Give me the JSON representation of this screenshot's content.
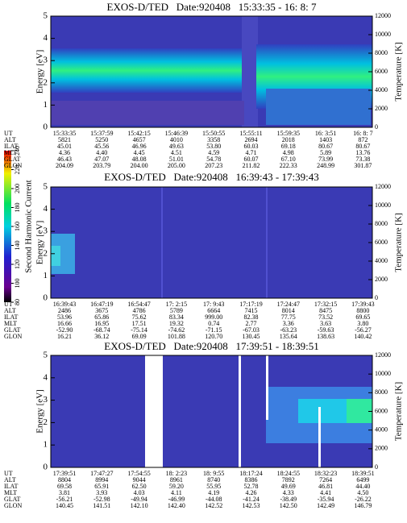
{
  "colorbar": {
    "label": "Second Harmonic Current",
    "lim": [
      80,
      240
    ],
    "ticks": [
      80,
      100,
      120,
      140,
      160,
      180,
      200,
      220,
      240
    ]
  },
  "chart_data": [
    {
      "type": "spectrogram",
      "title": "EXOS-D/TED   Date:920408   15:33:35 - 16: 8: 7",
      "ylabel": "Energy [eV]",
      "y2label": "Temperature [K]",
      "ylim": [
        0,
        5
      ],
      "yticks": [
        0,
        1,
        2,
        3,
        4,
        5
      ],
      "y2lim": [
        0,
        12000
      ],
      "y2ticks": [
        0,
        2000,
        4000,
        6000,
        8000,
        10000,
        12000
      ],
      "table": {
        "labels": [
          "UT",
          "ALT",
          "ILAT",
          "MLT",
          "GLAT",
          "GLON"
        ],
        "rows": [
          [
            "15:33:35",
            "15:37:59",
            "15:42:15",
            "15:46:39",
            "15:50:55",
            "15:55:11",
            "15:59:35",
            "16: 3:51",
            "16: 8: 7"
          ],
          [
            "5821",
            "5250",
            "4657",
            "4010",
            "3358",
            "2694",
            "2018",
            "1403",
            "872"
          ],
          [
            "45.01",
            "45.56",
            "46.96",
            "49.63",
            "53.80",
            "60.03",
            "69.18",
            "80.67",
            "80.67"
          ],
          [
            "4.36",
            "4.40",
            "4.45",
            "4.51",
            "4.59",
            "4.71",
            "4.98",
            "5.89",
            "13.76"
          ],
          [
            "46.43",
            "47.07",
            "48.08",
            "51.01",
            "54.78",
            "60.07",
            "67.10",
            "73.99",
            "73.38"
          ],
          [
            "204.09",
            "203.79",
            "204.00",
            "205.00",
            "207.23",
            "211.82",
            "222.33",
            "248.99",
            "301.87"
          ]
        ]
      }
    },
    {
      "type": "spectrogram",
      "title": "EXOS-D/TED   Date:920408   16:39:43 - 17:39:43",
      "ylabel": "Energy [eV]",
      "y2label": "Temperature [K]",
      "ylim": [
        0,
        5
      ],
      "yticks": [
        0,
        1,
        2,
        3,
        4,
        5
      ],
      "y2lim": [
        0,
        12000
      ],
      "y2ticks": [
        0,
        2000,
        4000,
        6000,
        8000,
        10000,
        12000
      ],
      "table": {
        "labels": [
          "UT",
          "ALT",
          "ILAT",
          "MLT",
          "GLAT",
          "GLON"
        ],
        "rows": [
          [
            "16:39:43",
            "16:47:19",
            "16:54:47",
            "17: 2:15",
            "17: 9:43",
            "17:17:19",
            "17:24:47",
            "17:32:15",
            "17:39:43"
          ],
          [
            "2486",
            "3675",
            "4786",
            "5789",
            "6664",
            "7415",
            "8014",
            "8475",
            "8800"
          ],
          [
            "53.96",
            "65.86",
            "75.62",
            "83.34",
            "999.00",
            "82.38",
            "77.75",
            "73.52",
            "69.65"
          ],
          [
            "16.66",
            "16.95",
            "17.51",
            "19.32",
            "0.74",
            "2.77",
            "3.36",
            "3.63",
            "3.80"
          ],
          [
            "-52.90",
            "-68.74",
            "-75.14",
            "-74.62",
            "-71.15",
            "-67.03",
            "-63.23",
            "-59.63",
            "-56.27"
          ],
          [
            "16.21",
            "36.12",
            "69.09",
            "101.88",
            "120.70",
            "130.45",
            "135.64",
            "138.63",
            "140.42"
          ]
        ]
      }
    },
    {
      "type": "spectrogram",
      "title": "EXOS-D/TED   Date:920408   17:39:51 - 18:39:51",
      "ylabel": "Energy [eV]",
      "y2label": "Temperature [K]",
      "ylim": [
        0,
        5
      ],
      "yticks": [
        0,
        1,
        2,
        3,
        4,
        5
      ],
      "y2lim": [
        0,
        12000
      ],
      "y2ticks": [
        0,
        2000,
        4000,
        6000,
        8000,
        10000,
        12000
      ],
      "table": {
        "labels": [
          "UT",
          "ALT",
          "ILAT",
          "MLT",
          "GLAT",
          "GLON"
        ],
        "rows": [
          [
            "17:39:51",
            "17:47:27",
            "17:54:55",
            "18: 2:23",
            "18: 9:55",
            "18:17:24",
            "18:24:55",
            "18:32:23",
            "18:39:51"
          ],
          [
            "8804",
            "8994",
            "9044",
            "8961",
            "8740",
            "8386",
            "7892",
            "7264",
            "6499"
          ],
          [
            "69.58",
            "65.91",
            "62.50",
            "59.20",
            "55.95",
            "52.78",
            "49.69",
            "46.81",
            "44.40"
          ],
          [
            "3.81",
            "3.93",
            "4.03",
            "4.11",
            "4.19",
            "4.26",
            "4.33",
            "4.41",
            "4.50"
          ],
          [
            "-56.21",
            "-52.98",
            "-49.94",
            "-46.99",
            "-44.08",
            "-41.24",
            "-38.49",
            "-35.94",
            "-26.22"
          ],
          [
            "140.45",
            "141.51",
            "142.10",
            "142.40",
            "142.52",
            "142.53",
            "142.50",
            "142.49",
            "146.79"
          ]
        ]
      }
    }
  ]
}
